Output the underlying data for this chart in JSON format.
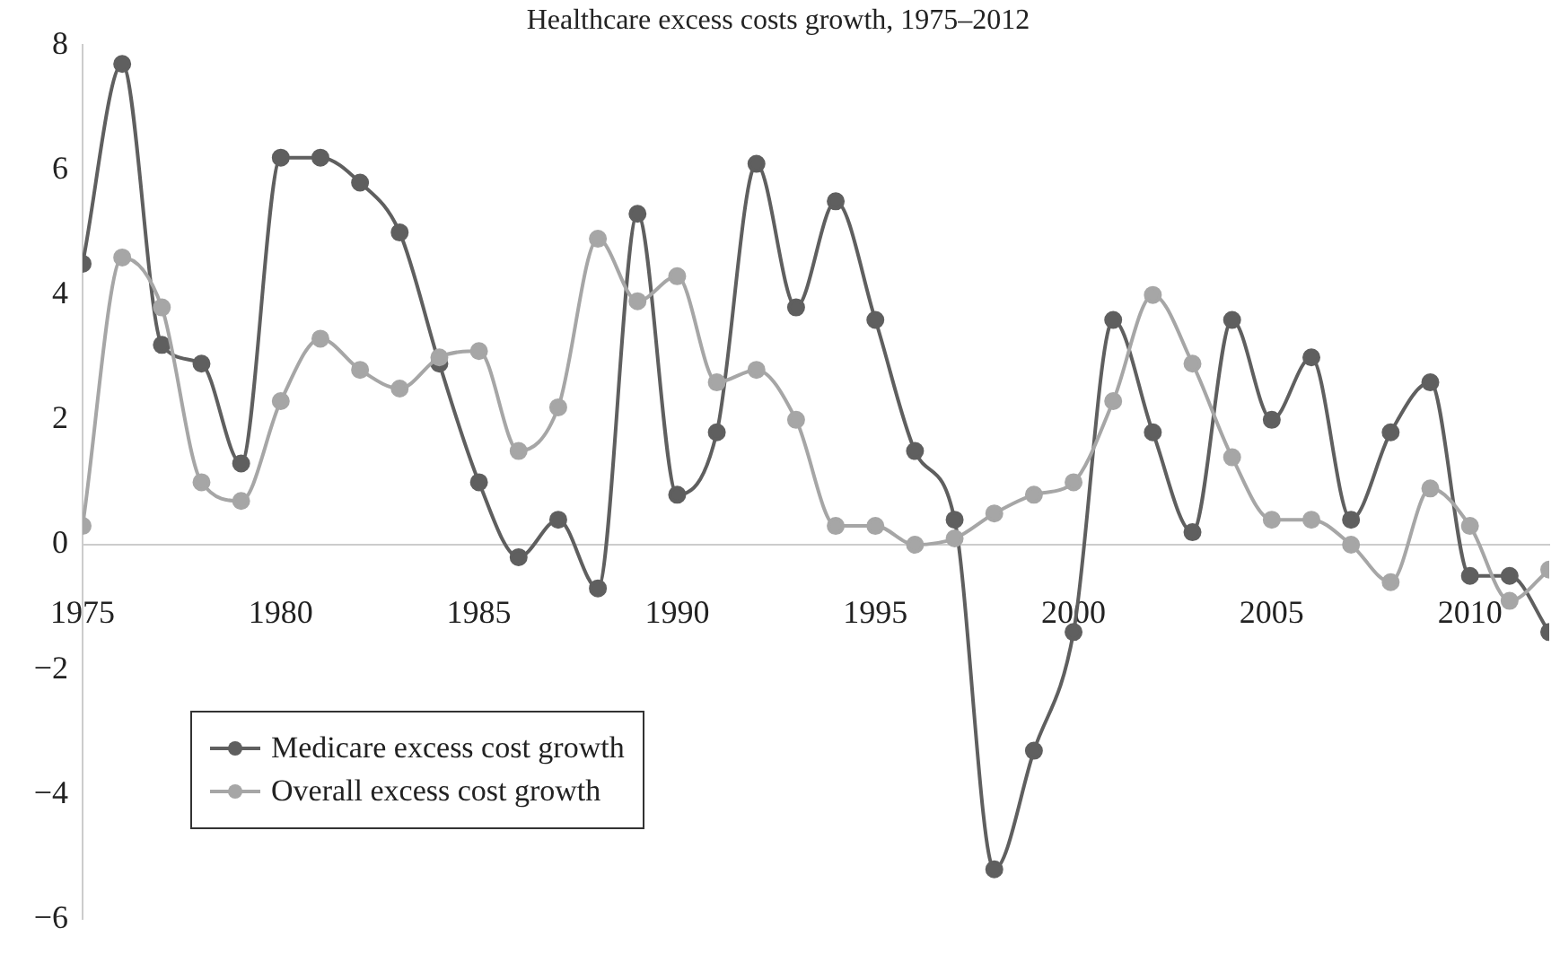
{
  "chart_data": {
    "type": "line",
    "title": "Healthcare excess costs growth, 1975–2012",
    "x": [
      1975,
      1976,
      1977,
      1978,
      1979,
      1980,
      1981,
      1982,
      1983,
      1984,
      1985,
      1986,
      1987,
      1988,
      1989,
      1990,
      1991,
      1992,
      1993,
      1994,
      1995,
      1996,
      1997,
      1998,
      1999,
      2000,
      2001,
      2002,
      2003,
      2004,
      2005,
      2006,
      2007,
      2008,
      2009,
      2010,
      2011,
      2012
    ],
    "series": [
      {
        "name": "Medicare excess cost growth",
        "color": "#5f5f5f",
        "values": [
          4.5,
          7.7,
          3.2,
          2.9,
          1.3,
          6.2,
          6.2,
          5.8,
          5.0,
          2.9,
          1.0,
          -0.2,
          0.4,
          -0.7,
          5.3,
          0.8,
          1.8,
          6.1,
          3.8,
          5.5,
          3.6,
          1.5,
          0.4,
          -5.2,
          -3.3,
          -1.4,
          3.6,
          1.8,
          0.2,
          3.6,
          2.0,
          3.0,
          0.4,
          1.8,
          2.6,
          -0.5,
          -0.5,
          -1.4
        ]
      },
      {
        "name": "Overall excess cost growth",
        "color": "#a6a6a6",
        "values": [
          0.3,
          4.6,
          3.8,
          1.0,
          0.7,
          2.3,
          3.3,
          2.8,
          2.5,
          3.0,
          3.1,
          1.5,
          2.2,
          4.9,
          3.9,
          4.3,
          2.6,
          2.8,
          2.0,
          0.3,
          0.3,
          0.0,
          0.1,
          0.5,
          0.8,
          1.0,
          2.3,
          4.0,
          2.9,
          1.4,
          0.4,
          0.4,
          0.0,
          -0.6,
          0.9,
          0.3,
          -0.9,
          -0.4
        ]
      }
    ],
    "xlim": [
      1975,
      2012
    ],
    "xticks": [
      1975,
      1980,
      1985,
      1990,
      1995,
      2000,
      2005,
      2010
    ],
    "ylim": [
      -6,
      8
    ],
    "yticks": [
      -6,
      -4,
      -2,
      0,
      2,
      4,
      6,
      8
    ],
    "grid": false,
    "legend": "bottom left",
    "marker": "circle",
    "line_style": "solid"
  }
}
